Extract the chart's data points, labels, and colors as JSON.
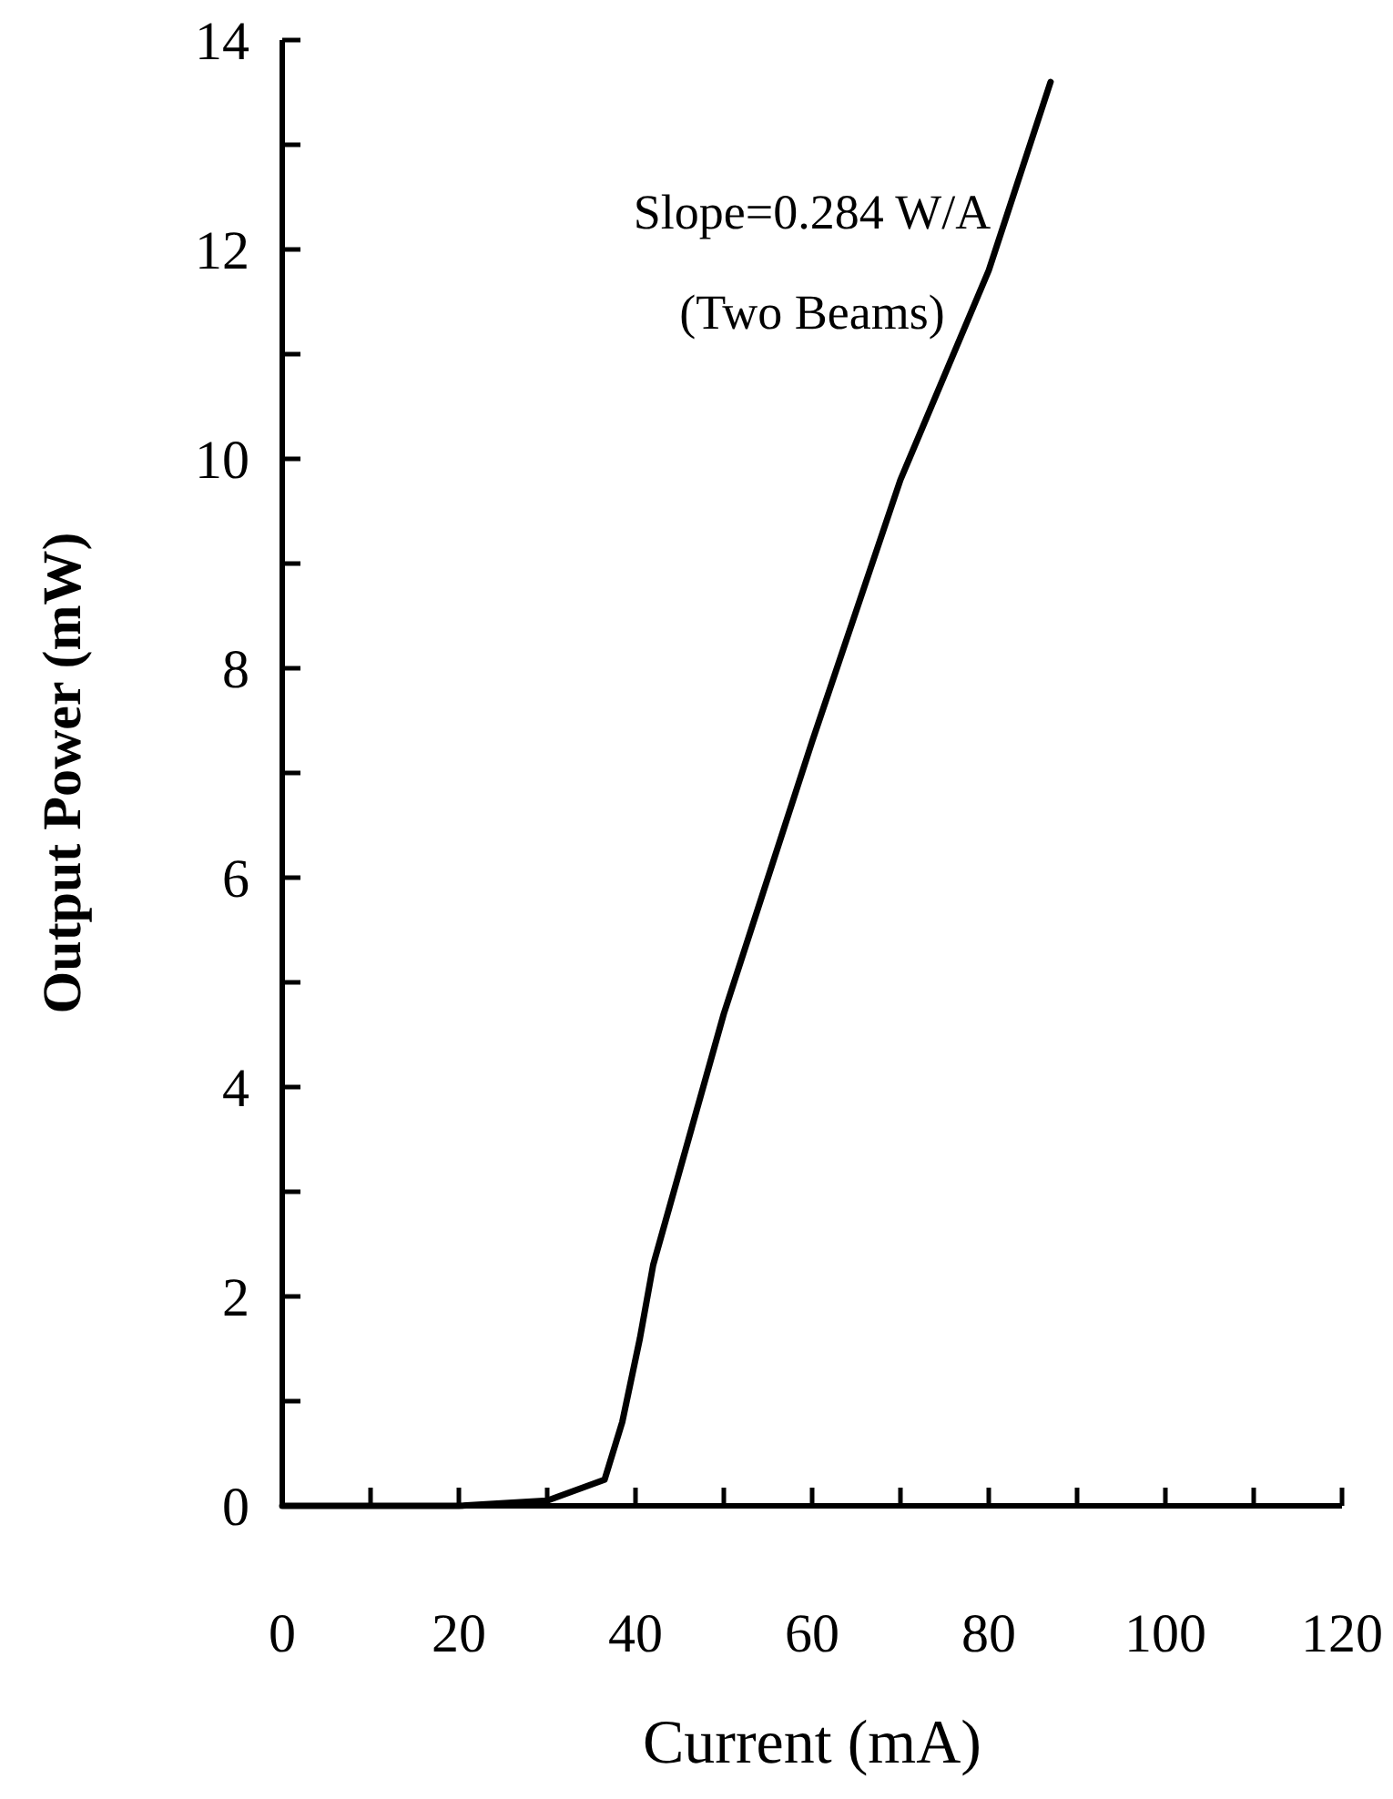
{
  "chart_data": {
    "type": "line",
    "xlabel": "Current (mA)",
    "ylabel": "Output Power (mW)",
    "annotations": [
      "Slope=0.284 W/A",
      "(Two Beams)"
    ],
    "x": [
      0,
      20,
      30,
      36.5,
      38.5,
      40.5,
      42,
      50,
      60,
      70,
      80,
      87
    ],
    "series": [
      {
        "color": "#000000",
        "values": [
          0,
          0,
          0.05,
          0.25,
          0.8,
          1.6,
          2.3,
          4.7,
          7.3,
          9.8,
          11.8,
          13.6
        ]
      }
    ],
    "xlim": [
      0,
      120
    ],
    "ylim": [
      0,
      14
    ],
    "xticks": [
      0,
      {
        "value": 10,
        "label": null
      },
      20,
      {
        "value": 30,
        "label": null
      },
      40,
      {
        "value": 50,
        "label": null
      },
      60,
      {
        "value": 70,
        "label": null
      },
      80,
      {
        "value": 90,
        "label": null
      },
      100,
      {
        "value": 110,
        "label": null
      },
      120
    ],
    "yticks": [
      0,
      {
        "value": 1,
        "label": null
      },
      2,
      {
        "value": 3,
        "label": null
      },
      4,
      {
        "value": 5,
        "label": null
      },
      6,
      {
        "value": 7,
        "label": null
      },
      8,
      {
        "value": 9,
        "label": null
      },
      10,
      {
        "value": 11,
        "label": null
      },
      12,
      {
        "value": 13,
        "label": null
      },
      14
    ],
    "marker": "none",
    "line_style": "solid"
  }
}
